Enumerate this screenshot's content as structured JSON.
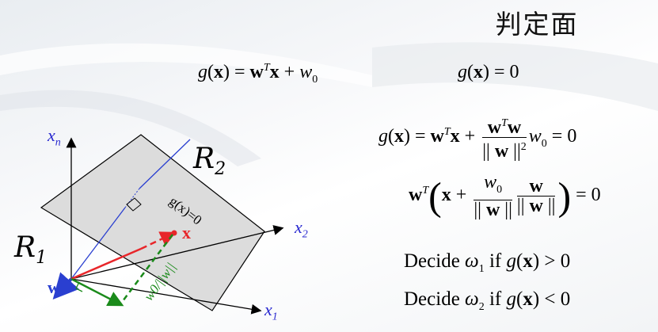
{
  "title": "判定面",
  "equations": {
    "eq1": {
      "g": "g",
      "x": "x",
      "w": "w",
      "T": "T",
      "w0": "w",
      "w0_sub": "0"
    },
    "eq2": {
      "lhs": "g",
      "x": "x",
      "rhs": "= 0"
    },
    "eq3": {
      "zero": "= 0"
    },
    "eq4": {
      "zero": "= 0"
    }
  },
  "decisions": [
    {
      "word": "Decide",
      "omega_sub": "1",
      "cond": "if",
      "op": "> 0"
    },
    {
      "word": "Decide",
      "omega_sub": "2",
      "cond": "if",
      "op": "< 0"
    }
  ],
  "diagram": {
    "axis_xn": "x",
    "axis_xn_sub": "n",
    "axis_x2": "x",
    "axis_x2_sub": "2",
    "axis_x1": "x",
    "axis_x1_sub": "1",
    "region_r1": "R",
    "region_r1_sub": "1",
    "region_r2": "R",
    "region_r2_sub": "2",
    "plane_label": "g(x)=0",
    "point_label": "x",
    "w_label": "w",
    "dist_label": "w0/||w||",
    "colors": {
      "red": "#e8262a",
      "green": "#1a8a1a",
      "blue": "#2a3fd0",
      "axis_text": "#2a2ad0",
      "plane": "#dcdcdc"
    }
  }
}
